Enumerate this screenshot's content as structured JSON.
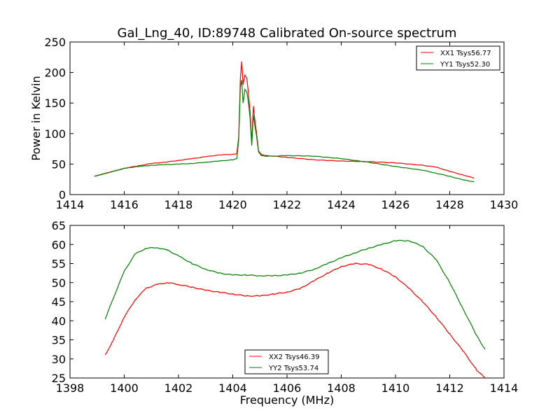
{
  "chart_data": [
    {
      "type": "line",
      "title": "Gal_Lng_40, ID:89748 Calibrated On-source spectrum",
      "xlabel": "",
      "ylabel": "Power in Kelvin",
      "xlim": [
        1414,
        1430
      ],
      "ylim": [
        0,
        250
      ],
      "xticks": [
        "1414",
        "1416",
        "1418",
        "1420",
        "1422",
        "1424",
        "1426",
        "1428",
        "1430"
      ],
      "yticks": [
        "0",
        "50",
        "100",
        "150",
        "200",
        "250"
      ],
      "legend_position": "top-right",
      "grid": false,
      "series": [
        {
          "name": "XX1 Tsys56.77",
          "color": "#ff0000",
          "x": [
            1414.9,
            1415.5,
            1416,
            1416.5,
            1417,
            1417.5,
            1418,
            1418.5,
            1419,
            1419.5,
            1420,
            1420.15,
            1420.22,
            1420.28,
            1420.33,
            1420.38,
            1420.45,
            1420.52,
            1420.58,
            1420.64,
            1420.7,
            1420.76,
            1420.82,
            1420.88,
            1420.95,
            1421.05,
            1421.2,
            1421.5,
            1422,
            1423,
            1424,
            1425,
            1426,
            1427,
            1427.5,
            1428,
            1428.5,
            1428.9
          ],
          "y": [
            30,
            37,
            43,
            47,
            51,
            53,
            56,
            59,
            62,
            65,
            66,
            67,
            95,
            190,
            218,
            180,
            196,
            190,
            165,
            135,
            85,
            145,
            120,
            100,
            72,
            66,
            64,
            63,
            61,
            57,
            55,
            54,
            52,
            48,
            45,
            38,
            32,
            27
          ]
        },
        {
          "name": "YY1 Tsys52.30",
          "color": "#008000",
          "x": [
            1414.9,
            1415.5,
            1416,
            1416.5,
            1417,
            1417.5,
            1418,
            1418.5,
            1419,
            1419.5,
            1420,
            1420.15,
            1420.22,
            1420.28,
            1420.33,
            1420.38,
            1420.45,
            1420.52,
            1420.58,
            1420.64,
            1420.7,
            1420.76,
            1420.82,
            1420.88,
            1420.95,
            1421.05,
            1421.2,
            1421.5,
            1422,
            1423,
            1424,
            1425,
            1426,
            1427,
            1427.5,
            1428,
            1428.5,
            1428.9
          ],
          "y": [
            30,
            37,
            43,
            46,
            48,
            49,
            50,
            51,
            53,
            55,
            57,
            59,
            90,
            175,
            188,
            150,
            172,
            168,
            150,
            125,
            80,
            130,
            112,
            95,
            70,
            64,
            63,
            63,
            64,
            63,
            59,
            53,
            46,
            40,
            35,
            30,
            24,
            21
          ]
        }
      ]
    },
    {
      "type": "line",
      "title": "",
      "xlabel": "Frequency (MHz)",
      "ylabel": "",
      "xlim": [
        1398,
        1414
      ],
      "ylim": [
        25,
        65
      ],
      "xticks": [
        "1398",
        "1400",
        "1402",
        "1404",
        "1406",
        "1408",
        "1410",
        "1412",
        "1414"
      ],
      "yticks": [
        "25",
        "30",
        "35",
        "40",
        "45",
        "50",
        "55",
        "60",
        "65"
      ],
      "legend_position": "lower-center",
      "grid": false,
      "series": [
        {
          "name": "XX2 Tsys46.39",
          "color": "#ff0000",
          "x": [
            1399.3,
            1399.6,
            1400,
            1400.4,
            1400.8,
            1401.2,
            1401.6,
            1402,
            1402.5,
            1403,
            1403.5,
            1404,
            1404.5,
            1405,
            1405.5,
            1406,
            1406.5,
            1407,
            1407.5,
            1408,
            1408.5,
            1409,
            1409.5,
            1410,
            1410.5,
            1411,
            1411.5,
            1412,
            1412.5,
            1413,
            1413.3
          ],
          "y": [
            31,
            35,
            41,
            45.5,
            48.5,
            49.5,
            50,
            49.5,
            48.8,
            48,
            47.5,
            47,
            46.5,
            46.5,
            47,
            47.5,
            48.5,
            50.5,
            52.5,
            54.2,
            55,
            54.8,
            53.5,
            51.5,
            48.5,
            45,
            41,
            36.5,
            32,
            27,
            25
          ]
        },
        {
          "name": "YY2 Tsys53.74",
          "color": "#008000",
          "x": [
            1399.3,
            1399.6,
            1400,
            1400.4,
            1400.8,
            1401.2,
            1401.6,
            1402,
            1402.5,
            1403,
            1403.5,
            1404,
            1404.5,
            1405,
            1405.5,
            1406,
            1406.5,
            1407,
            1407.5,
            1408,
            1408.5,
            1409,
            1409.5,
            1410,
            1410.5,
            1411,
            1411.5,
            1412,
            1412.5,
            1413,
            1413.3
          ],
          "y": [
            40.5,
            46,
            53,
            57.5,
            59,
            59.2,
            58.5,
            57,
            55,
            53.5,
            52.5,
            52,
            52,
            51.8,
            51.8,
            52,
            52.5,
            53.5,
            55,
            56.5,
            57.8,
            59,
            60,
            61,
            61,
            59.5,
            56,
            50,
            43,
            36,
            32.5
          ]
        }
      ]
    }
  ]
}
